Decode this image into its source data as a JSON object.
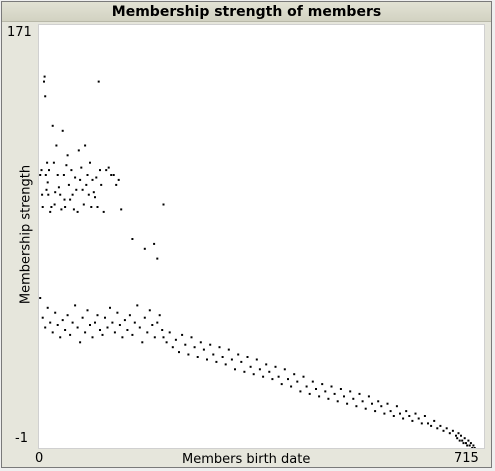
{
  "window": {
    "title": "Membership strength of members"
  },
  "chart_data": {
    "type": "scatter",
    "title": "Membership strength of members",
    "xlabel": "Members birth date",
    "ylabel": "Membership strength",
    "xlim": [
      0,
      715
    ],
    "ylim": [
      -1,
      171
    ],
    "x_tick_labels": [
      "0",
      "715"
    ],
    "y_tick_labels": [
      "171",
      "-1"
    ],
    "grid": false,
    "point_color": "#000000",
    "series": [
      {
        "values": [
          [
            2,
            110
          ],
          [
            4,
            112
          ],
          [
            5,
            102
          ],
          [
            6,
            97
          ],
          [
            8,
            148
          ],
          [
            9,
            150
          ],
          [
            10,
            142
          ],
          [
            11,
            110
          ],
          [
            12,
            104
          ],
          [
            13,
            115
          ],
          [
            14,
            107
          ],
          [
            15,
            102
          ],
          [
            16,
            112
          ],
          [
            18,
            95
          ],
          [
            20,
            97
          ],
          [
            22,
            130
          ],
          [
            24,
            115
          ],
          [
            25,
            98
          ],
          [
            26,
            103
          ],
          [
            28,
            122
          ],
          [
            30,
            110
          ],
          [
            32,
            105
          ],
          [
            34,
            102
          ],
          [
            36,
            96
          ],
          [
            38,
            128
          ],
          [
            40,
            110
          ],
          [
            41,
            100
          ],
          [
            42,
            97
          ],
          [
            44,
            114
          ],
          [
            46,
            118
          ],
          [
            48,
            106
          ],
          [
            50,
            100
          ],
          [
            52,
            112
          ],
          [
            54,
            102
          ],
          [
            56,
            96
          ],
          [
            58,
            109
          ],
          [
            60,
            104
          ],
          [
            62,
            95
          ],
          [
            64,
            120
          ],
          [
            66,
            108
          ],
          [
            68,
            113
          ],
          [
            70,
            104
          ],
          [
            72,
            98
          ],
          [
            74,
            122
          ],
          [
            76,
            106
          ],
          [
            78,
            110
          ],
          [
            80,
            102
          ],
          [
            82,
            115
          ],
          [
            84,
            97
          ],
          [
            86,
            108
          ],
          [
            88,
            103
          ],
          [
            90,
            101
          ],
          [
            92,
            109
          ],
          [
            94,
            97
          ],
          [
            96,
            148
          ],
          [
            98,
            112
          ],
          [
            100,
            106
          ],
          [
            104,
            95
          ],
          [
            108,
            112
          ],
          [
            112,
            113
          ],
          [
            116,
            110
          ],
          [
            120,
            110
          ],
          [
            124,
            106
          ],
          [
            128,
            108
          ],
          [
            132,
            96
          ],
          [
            150,
            84
          ],
          [
            170,
            80
          ],
          [
            185,
            82
          ],
          [
            190,
            76
          ],
          [
            200,
            98
          ],
          [
            2,
            60
          ],
          [
            6,
            52
          ],
          [
            10,
            48
          ],
          [
            14,
            56
          ],
          [
            18,
            50
          ],
          [
            22,
            46
          ],
          [
            26,
            54
          ],
          [
            30,
            49
          ],
          [
            34,
            44
          ],
          [
            38,
            51
          ],
          [
            42,
            47
          ],
          [
            46,
            53
          ],
          [
            50,
            45
          ],
          [
            54,
            50
          ],
          [
            58,
            57
          ],
          [
            62,
            48
          ],
          [
            66,
            42
          ],
          [
            70,
            52
          ],
          [
            74,
            46
          ],
          [
            78,
            55
          ],
          [
            82,
            49
          ],
          [
            86,
            44
          ],
          [
            90,
            50
          ],
          [
            94,
            53
          ],
          [
            98,
            47
          ],
          [
            102,
            45
          ],
          [
            106,
            52
          ],
          [
            110,
            48
          ],
          [
            114,
            56
          ],
          [
            118,
            50
          ],
          [
            122,
            46
          ],
          [
            126,
            54
          ],
          [
            130,
            49
          ],
          [
            134,
            44
          ],
          [
            138,
            51
          ],
          [
            142,
            47
          ],
          [
            146,
            53
          ],
          [
            150,
            45
          ],
          [
            154,
            50
          ],
          [
            158,
            57
          ],
          [
            162,
            48
          ],
          [
            166,
            42
          ],
          [
            170,
            52
          ],
          [
            174,
            46
          ],
          [
            178,
            55
          ],
          [
            182,
            49
          ],
          [
            186,
            44
          ],
          [
            190,
            50
          ],
          [
            194,
            53
          ],
          [
            198,
            47
          ],
          [
            200,
            44
          ],
          [
            205,
            42
          ],
          [
            210,
            46
          ],
          [
            215,
            40
          ],
          [
            220,
            43
          ],
          [
            225,
            38
          ],
          [
            230,
            45
          ],
          [
            235,
            41
          ],
          [
            240,
            37
          ],
          [
            245,
            44
          ],
          [
            250,
            40
          ],
          [
            255,
            36
          ],
          [
            260,
            42
          ],
          [
            265,
            39
          ],
          [
            270,
            35
          ],
          [
            275,
            41
          ],
          [
            280,
            37
          ],
          [
            285,
            34
          ],
          [
            290,
            40
          ],
          [
            295,
            36
          ],
          [
            300,
            33
          ],
          [
            305,
            39
          ],
          [
            310,
            35
          ],
          [
            315,
            31
          ],
          [
            320,
            37
          ],
          [
            325,
            34
          ],
          [
            330,
            30
          ],
          [
            335,
            36
          ],
          [
            340,
            32
          ],
          [
            345,
            29
          ],
          [
            350,
            35
          ],
          [
            355,
            31
          ],
          [
            360,
            28
          ],
          [
            365,
            33
          ],
          [
            370,
            30
          ],
          [
            375,
            27
          ],
          [
            380,
            32
          ],
          [
            385,
            28
          ],
          [
            390,
            25
          ],
          [
            395,
            31
          ],
          [
            400,
            27
          ],
          [
            405,
            24
          ],
          [
            410,
            29
          ],
          [
            415,
            26
          ],
          [
            420,
            22
          ],
          [
            425,
            28
          ],
          [
            430,
            24
          ],
          [
            435,
            21
          ],
          [
            440,
            26
          ],
          [
            445,
            23
          ],
          [
            450,
            20
          ],
          [
            455,
            25
          ],
          [
            460,
            22
          ],
          [
            465,
            19
          ],
          [
            470,
            24
          ],
          [
            475,
            21
          ],
          [
            480,
            18
          ],
          [
            485,
            23
          ],
          [
            490,
            20
          ],
          [
            495,
            17
          ],
          [
            500,
            22
          ],
          [
            505,
            19
          ],
          [
            510,
            16
          ],
          [
            515,
            21
          ],
          [
            520,
            18
          ],
          [
            525,
            15
          ],
          [
            530,
            20
          ],
          [
            535,
            17
          ],
          [
            540,
            14
          ],
          [
            545,
            18
          ],
          [
            550,
            16
          ],
          [
            555,
            13
          ],
          [
            560,
            17
          ],
          [
            565,
            14
          ],
          [
            570,
            12
          ],
          [
            575,
            16
          ],
          [
            580,
            13
          ],
          [
            585,
            11
          ],
          [
            590,
            14
          ],
          [
            595,
            12
          ],
          [
            600,
            10
          ],
          [
            605,
            13
          ],
          [
            610,
            11
          ],
          [
            615,
            9
          ],
          [
            620,
            12
          ],
          [
            625,
            9
          ],
          [
            630,
            8
          ],
          [
            635,
            10
          ],
          [
            640,
            7
          ],
          [
            645,
            8
          ],
          [
            650,
            6
          ],
          [
            655,
            7
          ],
          [
            660,
            5
          ],
          [
            665,
            6
          ],
          [
            670,
            4
          ],
          [
            672,
            3
          ],
          [
            674,
            5
          ],
          [
            676,
            2
          ],
          [
            678,
            4
          ],
          [
            680,
            2
          ],
          [
            682,
            1
          ],
          [
            684,
            3
          ],
          [
            686,
            1
          ],
          [
            688,
            0
          ],
          [
            690,
            2
          ],
          [
            692,
            0
          ],
          [
            694,
            1
          ],
          [
            696,
            -1
          ],
          [
            698,
            0
          ],
          [
            700,
            -1
          ]
        ]
      }
    ]
  }
}
